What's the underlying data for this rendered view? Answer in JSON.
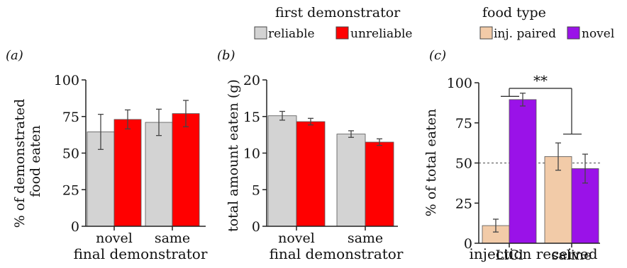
{
  "legends": [
    {
      "title": "first demonstrator",
      "entries": [
        {
          "label": "reliable",
          "color": "#d3d3d3"
        },
        {
          "label": "unreliable",
          "color": "#ff0000"
        }
      ]
    },
    {
      "title": "food type",
      "entries": [
        {
          "label": "inj. paired",
          "color": "#f2cba8"
        },
        {
          "label": "novel",
          "color": "#9a12e8"
        }
      ]
    }
  ],
  "chart_data": [
    {
      "panel": "(a)",
      "type": "bar",
      "ylabel": "% of demonstrated\nfood eaten",
      "xlabel": "final demonstrator",
      "ylim": [
        0,
        100
      ],
      "yticks": [
        0,
        25,
        50,
        75,
        100
      ],
      "categories": [
        "novel",
        "same"
      ],
      "series": [
        {
          "name": "reliable",
          "color": "#d3d3d3",
          "values": [
            64.5,
            71
          ],
          "errors": [
            12,
            9
          ]
        },
        {
          "name": "unreliable",
          "color": "#ff0000",
          "values": [
            73,
            77
          ],
          "errors": [
            6.5,
            9
          ]
        }
      ]
    },
    {
      "panel": "(b)",
      "type": "bar",
      "ylabel": "total amount eaten (g)",
      "xlabel": "final demonstrator",
      "ylim": [
        0,
        20
      ],
      "yticks": [
        0,
        5,
        10,
        15,
        20
      ],
      "categories": [
        "novel",
        "same"
      ],
      "series": [
        {
          "name": "reliable",
          "color": "#d3d3d3",
          "values": [
            15.1,
            12.6
          ],
          "errors": [
            0.6,
            0.45
          ]
        },
        {
          "name": "unreliable",
          "color": "#ff0000",
          "values": [
            14.3,
            11.5
          ],
          "errors": [
            0.45,
            0.45
          ]
        }
      ]
    },
    {
      "panel": "(c)",
      "type": "bar",
      "ylabel": "% of total eaten",
      "xlabel": "injection received",
      "ylim": [
        0,
        100
      ],
      "yticks": [
        0,
        25,
        50,
        75,
        100
      ],
      "categories": [
        "LiCl",
        "saline"
      ],
      "series": [
        {
          "name": "inj. paired",
          "color": "#f2cba8",
          "values": [
            11,
            54
          ],
          "errors": [
            4,
            8.5
          ]
        },
        {
          "name": "novel",
          "color": "#9a12e8",
          "values": [
            89.5,
            46.5
          ],
          "errors": [
            4,
            9
          ]
        }
      ],
      "reference_line": 50,
      "significance": "**"
    }
  ]
}
